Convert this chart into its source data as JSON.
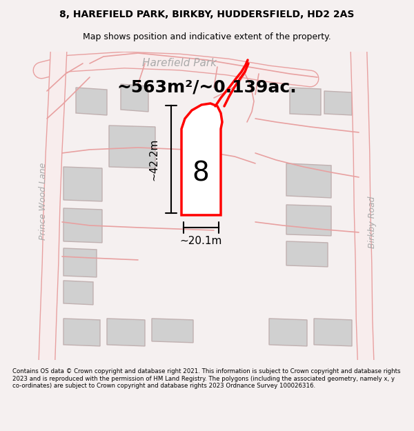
{
  "title_line1": "8, HAREFIELD PARK, BIRKBY, HUDDERSFIELD, HD2 2AS",
  "title_line2": "Map shows position and indicative extent of the property.",
  "area_text": "~563m²/~0.139ac.",
  "dim_height": "~42.2m",
  "dim_width": "~20.1m",
  "property_number": "8",
  "road_label_top": "Harefield Park",
  "road_label_left": "Prince Wood Lane",
  "road_label_right": "Birkby Road",
  "footer_text": "Contains OS data © Crown copyright and database right 2021. This information is subject to Crown copyright and database rights 2023 and is reproduced with the permission of HM Land Registry. The polygons (including the associated geometry, namely x, y co-ordinates) are subject to Crown copyright and database rights 2023 Ordnance Survey 100026316.",
  "bg_color": "#f5f0f0",
  "map_bg_color": "#ffffff",
  "road_color": "#e8a0a0",
  "building_color": "#d0d0d0",
  "building_edge_color": "#c0b0b0",
  "highlight_color": "#ff0000",
  "text_color": "#000000",
  "road_text_color": "#aaaaaa",
  "footer_area_color": "#ffffff"
}
